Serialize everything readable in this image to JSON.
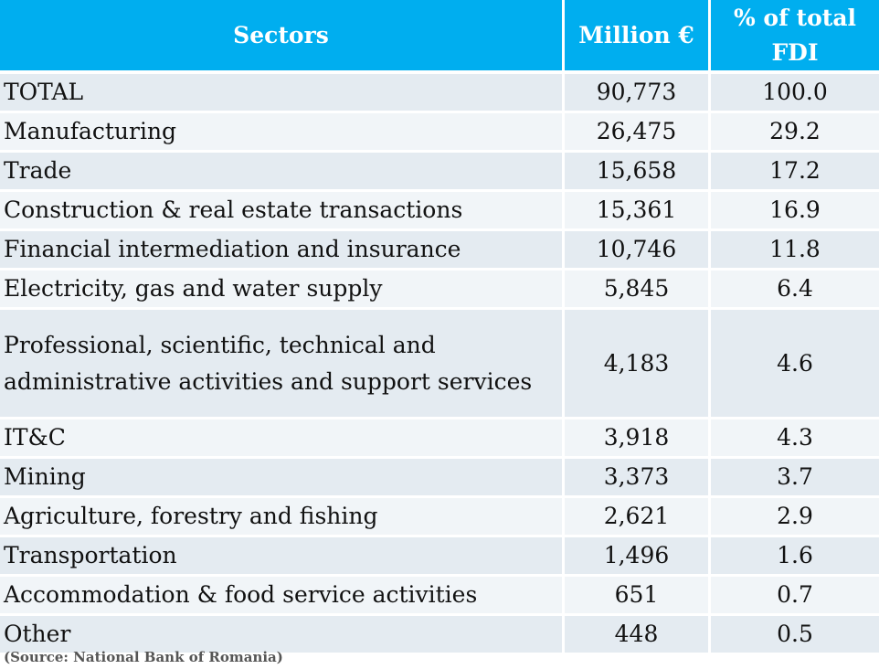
{
  "table": {
    "headers": [
      "Sectors",
      "Million €",
      "% of total FDI"
    ],
    "rows": [
      {
        "sector": "TOTAL",
        "million_eur": "90,773",
        "percent": "100.0"
      },
      {
        "sector": "Manufacturing",
        "million_eur": "26,475",
        "percent": "29.2"
      },
      {
        "sector": "Trade",
        "million_eur": "15,658",
        "percent": "17.2"
      },
      {
        "sector": "Construction & real estate transactions",
        "million_eur": "15,361",
        "percent": "16.9"
      },
      {
        "sector": "Financial intermediation and insurance",
        "million_eur": "10,746",
        "percent": "11.8"
      },
      {
        "sector": "Electricity, gas and water supply",
        "million_eur": "5,845",
        "percent": "6.4"
      },
      {
        "sector": "Professional, scientific, technical and administrative activities and support services",
        "million_eur": "4,183",
        "percent": "4.6"
      },
      {
        "sector": "IT&C",
        "million_eur": "3,918",
        "percent": "4.3"
      },
      {
        "sector": "Mining",
        "million_eur": "3,373",
        "percent": "3.7"
      },
      {
        "sector": "Agriculture, forestry and fishing",
        "million_eur": "2,621",
        "percent": "2.9"
      },
      {
        "sector": "Transportation",
        "million_eur": "1,496",
        "percent": "1.6"
      },
      {
        "sector": "Accommodation & food service activities",
        "million_eur": "651",
        "percent": "0.7"
      },
      {
        "sector": "Other",
        "million_eur": "448",
        "percent": "0.5"
      }
    ]
  },
  "source": "(Source: National Bank of Romania)",
  "colors": {
    "header_bg": "#00aeef",
    "row_dark": "#e4ebf1",
    "row_light": "#f1f5f8"
  }
}
